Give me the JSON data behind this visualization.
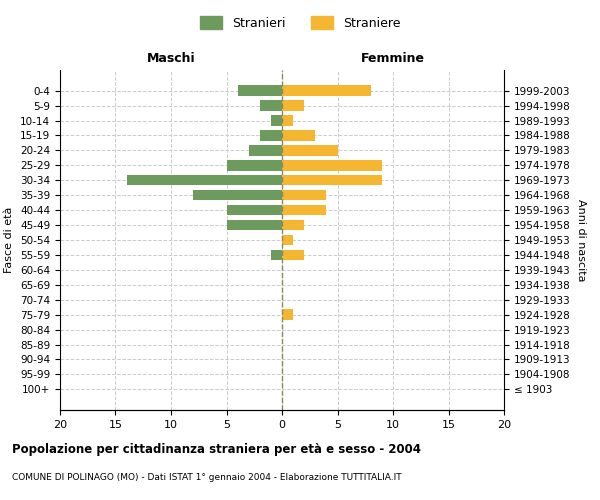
{
  "age_groups": [
    "100+",
    "95-99",
    "90-94",
    "85-89",
    "80-84",
    "75-79",
    "70-74",
    "65-69",
    "60-64",
    "55-59",
    "50-54",
    "45-49",
    "40-44",
    "35-39",
    "30-34",
    "25-29",
    "20-24",
    "15-19",
    "10-14",
    "5-9",
    "0-4"
  ],
  "birth_years": [
    "≤ 1903",
    "1904-1908",
    "1909-1913",
    "1914-1918",
    "1919-1923",
    "1924-1928",
    "1929-1933",
    "1934-1938",
    "1939-1943",
    "1944-1948",
    "1949-1953",
    "1954-1958",
    "1959-1963",
    "1964-1968",
    "1969-1973",
    "1974-1978",
    "1979-1983",
    "1984-1988",
    "1989-1993",
    "1994-1998",
    "1999-2003"
  ],
  "males": [
    0,
    0,
    0,
    0,
    0,
    0,
    0,
    0,
    0,
    1,
    0,
    5,
    5,
    8,
    14,
    5,
    3,
    2,
    1,
    2,
    4
  ],
  "females": [
    0,
    0,
    0,
    0,
    0,
    1,
    0,
    0,
    0,
    2,
    1,
    2,
    4,
    4,
    9,
    9,
    5,
    3,
    1,
    2,
    8
  ],
  "male_color": "#6d9b5e",
  "female_color": "#f5b731",
  "xlim": 20,
  "title": "Popolazione per cittadinanza straniera per età e sesso - 2004",
  "subtitle": "COMUNE DI POLINAGO (MO) - Dati ISTAT 1° gennaio 2004 - Elaborazione TUTTITALIA.IT",
  "xlabel_left": "Maschi",
  "xlabel_right": "Femmine",
  "ylabel_left": "Fasce di età",
  "ylabel_right": "Anni di nascita",
  "legend_males": "Stranieri",
  "legend_females": "Straniere",
  "background_color": "#ffffff",
  "grid_color": "#cccccc",
  "dashed_line_color": "#888866"
}
